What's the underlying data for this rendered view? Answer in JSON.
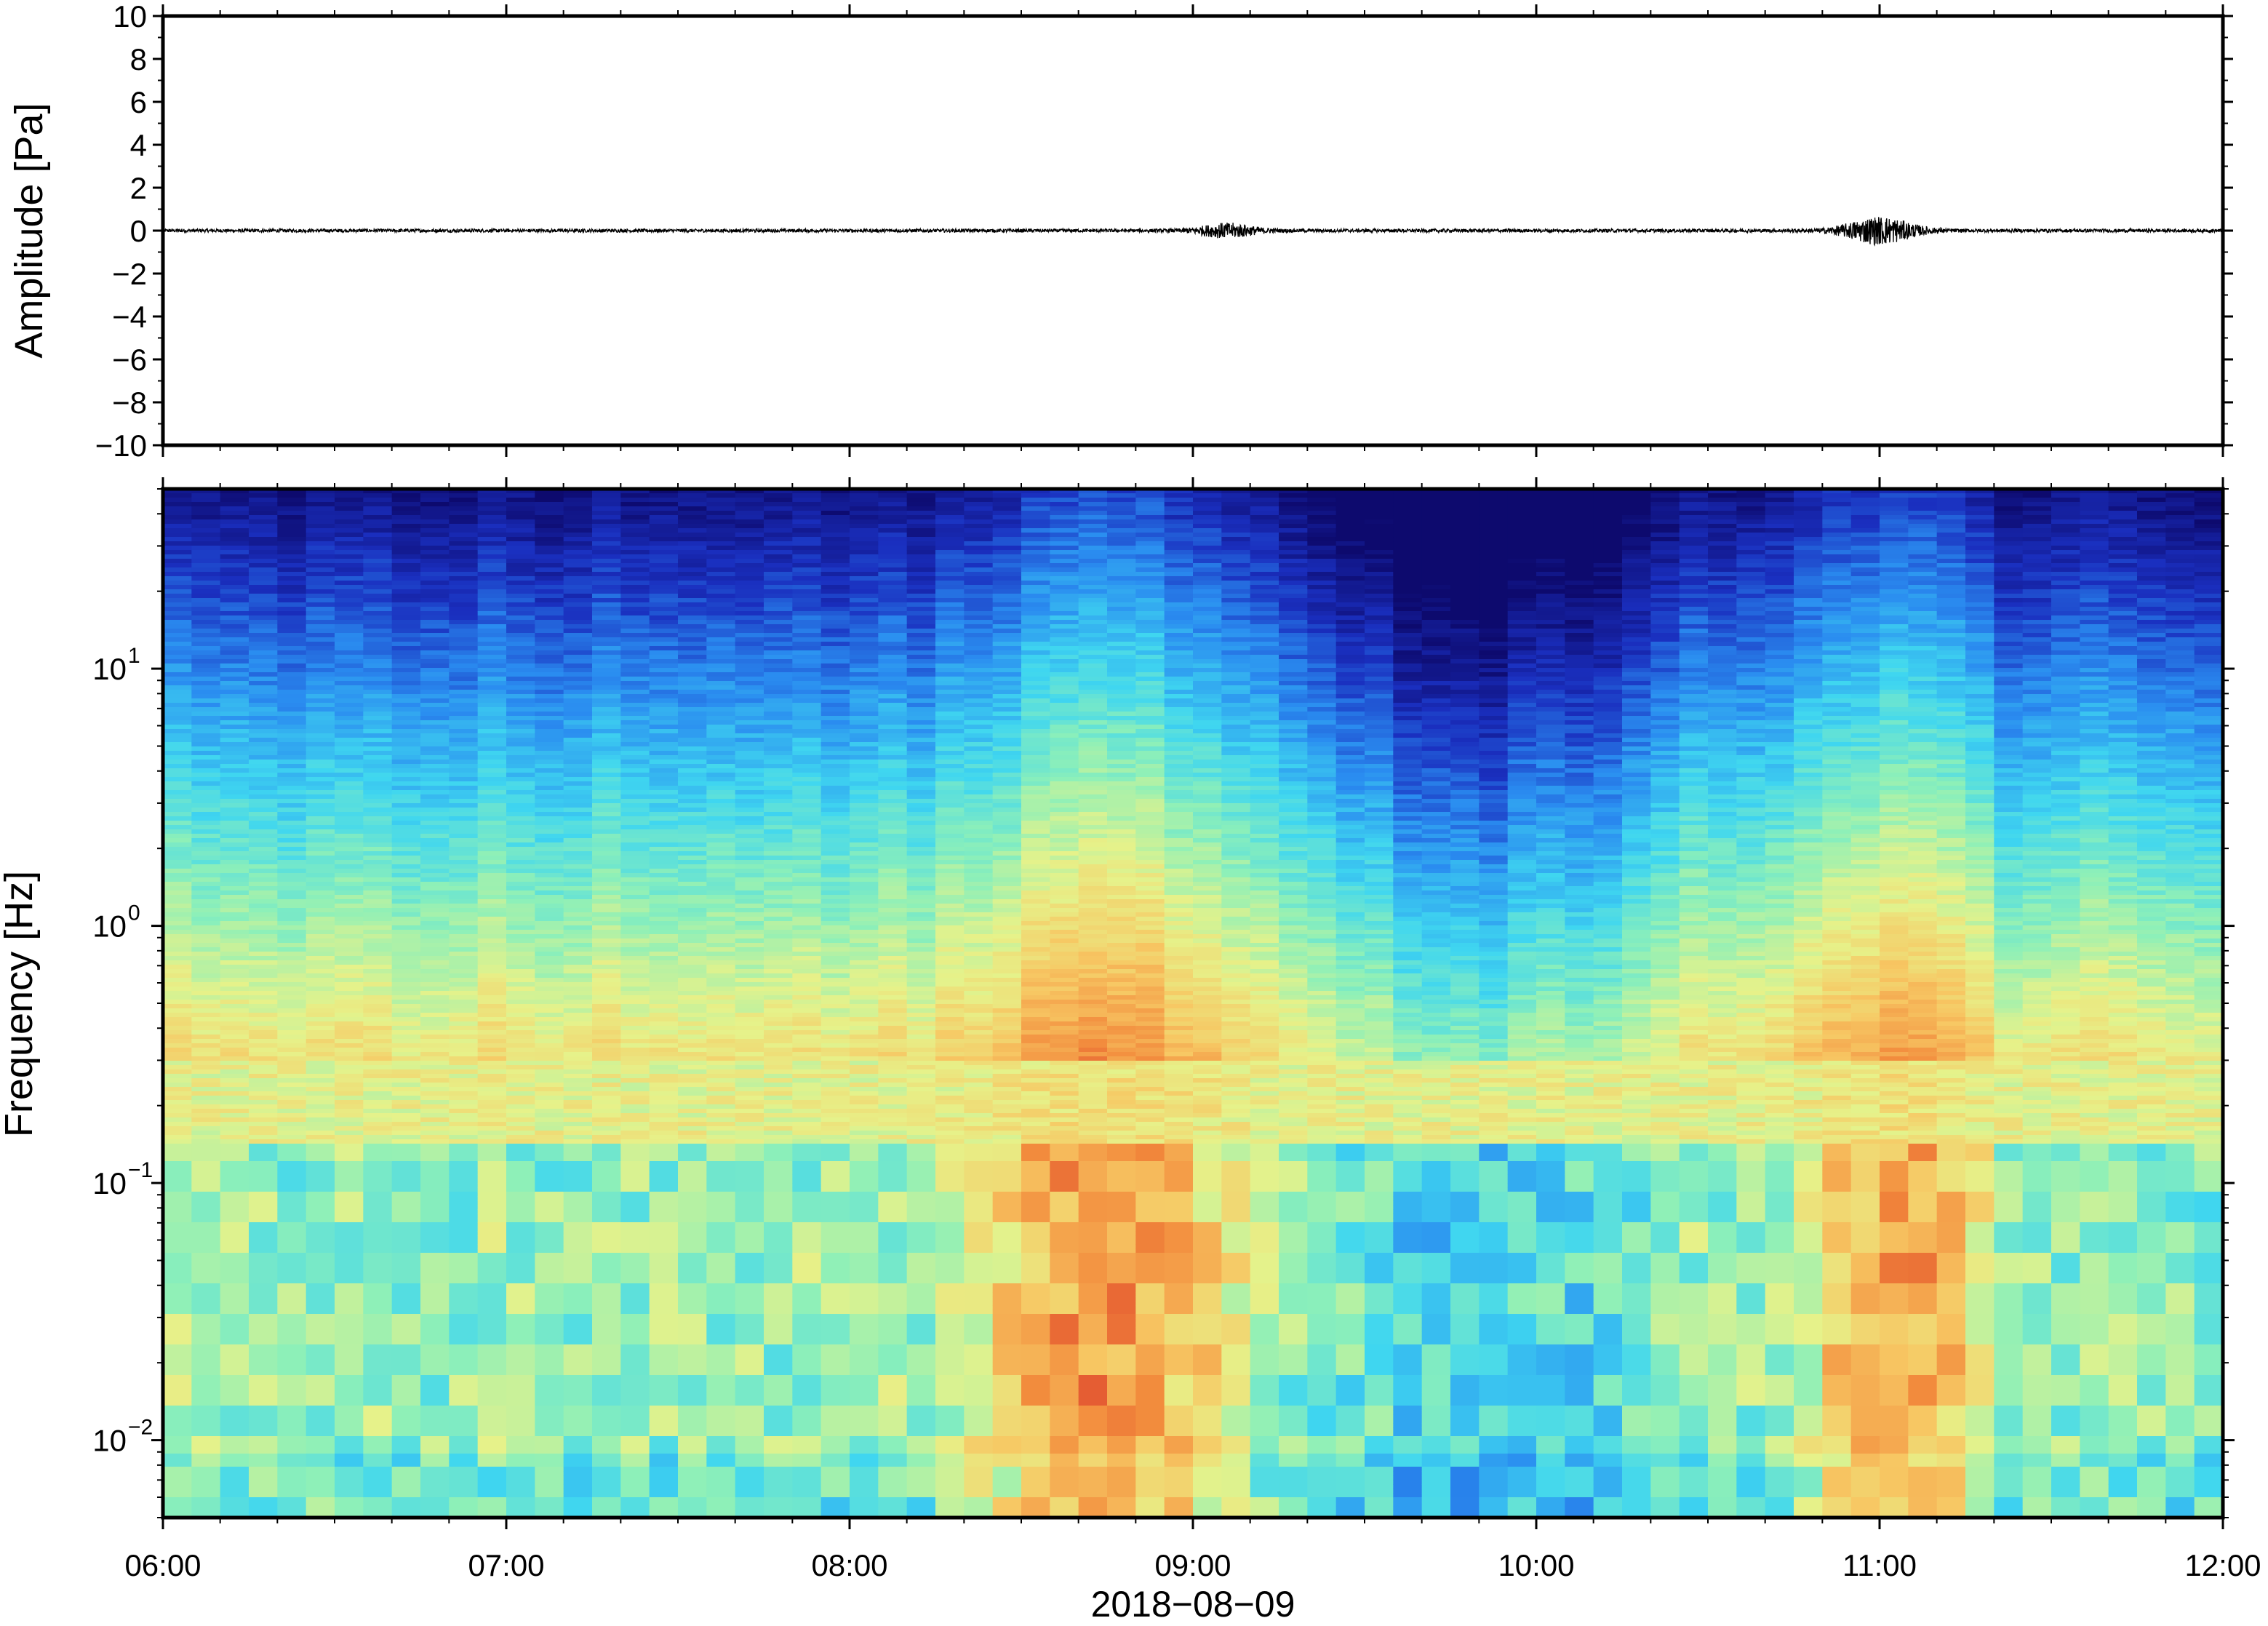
{
  "chart_data": [
    {
      "type": "line",
      "ylabel": "Amplitude [Pa]",
      "ylim": [
        -10,
        10
      ],
      "y_ticks": [
        "10",
        "8",
        "6",
        "4",
        "2",
        "0",
        "−2",
        "−4",
        "−6",
        "−8",
        "−10"
      ],
      "y_tick_values": [
        10,
        8,
        6,
        4,
        2,
        0,
        -2,
        -4,
        -6,
        -8,
        -10
      ],
      "xlim_hours": [
        6,
        12
      ],
      "baseline": 0,
      "bursts": [
        {
          "center_hour": 9.1,
          "width_hours": 0.25,
          "amplitude_pa": 0.3
        },
        {
          "center_hour": 11.0,
          "width_hours": 0.3,
          "amplitude_pa": 0.6
        }
      ],
      "noise_amplitude_pa": 0.08,
      "line_color": "#000000"
    },
    {
      "type": "heatmap",
      "ylabel": "Frequency [Hz]",
      "y_scale": "log",
      "ylim_hz": [
        0.005,
        50
      ],
      "y_ticks": [
        {
          "base": "10",
          "exp": "1",
          "value": 10
        },
        {
          "base": "10",
          "exp": "0",
          "value": 1
        },
        {
          "base": "10",
          "exp": "−1",
          "value": 0.1
        },
        {
          "base": "10",
          "exp": "−2",
          "value": 0.01
        }
      ],
      "colormap": [
        "#0d0a6e",
        "#1a2fbf",
        "#2a8cf0",
        "#3fd6f0",
        "#8ef0b8",
        "#e6f28a",
        "#f7c763",
        "#f28a3c",
        "#d9322a"
      ],
      "microbarom_band_hz": [
        0.14,
        0.3
      ],
      "high_energy_windows_hours": [
        [
          8.3,
          9.2
        ],
        [
          10.8,
          11.3
        ]
      ],
      "quiet_windows_hours": [
        [
          9.3,
          10.4
        ]
      ]
    }
  ],
  "x_axis": {
    "tick_labels": [
      "06:00",
      "07:00",
      "08:00",
      "09:00",
      "10:00",
      "11:00",
      "12:00"
    ],
    "tick_hours": [
      6,
      7,
      8,
      9,
      10,
      11,
      12
    ],
    "date_label": "2018−08−09"
  }
}
